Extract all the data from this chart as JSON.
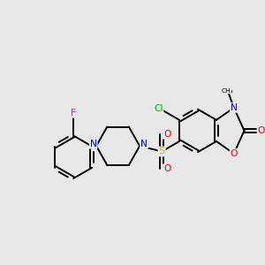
{
  "background_color": "#e8e8e8",
  "figsize": [
    3.0,
    3.0
  ],
  "dpi": 100,
  "bond_color": "#000000",
  "bond_lw": 1.4,
  "dbo": 0.055,
  "atom_colors": {
    "C": "#000000",
    "Cl": "#00bb00",
    "N": "#0000ee",
    "O": "#ee0000",
    "S": "#bbbb00",
    "F": "#ee00ee"
  },
  "fs": 7.2
}
